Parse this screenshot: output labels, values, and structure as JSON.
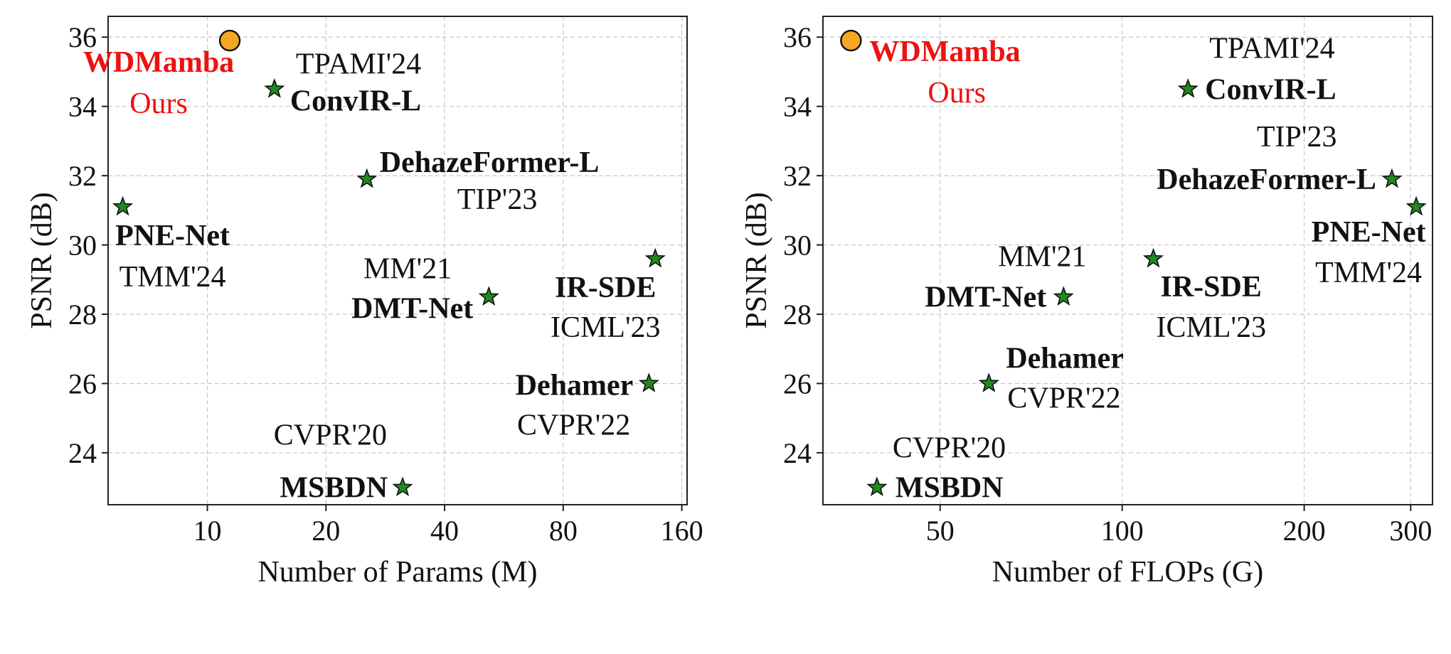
{
  "chart_data": [
    {
      "type": "scatter",
      "xscale": "log",
      "xlabel": "Number of Params (M)",
      "ylabel": "PSNR (dB)",
      "xlim": [
        5.6,
        165
      ],
      "ylim": [
        22.5,
        36.6
      ],
      "xticks": [
        10,
        20,
        40,
        80,
        160
      ],
      "xtick_labels": [
        "10",
        "20",
        "40",
        "80",
        "160"
      ],
      "yticks": [
        24,
        26,
        28,
        30,
        32,
        34,
        36
      ],
      "ytick_labels": [
        "24",
        "26",
        "28",
        "30",
        "32",
        "34",
        "36"
      ],
      "grid": true,
      "points": [
        {
          "name": "WDMamba",
          "venue": "Ours",
          "x": 11.4,
          "y": 35.9,
          "marker": "circle",
          "ours": true
        },
        {
          "name": "ConvIR-L",
          "venue": "TPAMI'24",
          "x": 14.8,
          "y": 34.5,
          "marker": "star"
        },
        {
          "name": "DehazeFormer-L",
          "venue": "TIP'23",
          "x": 25.4,
          "y": 31.9,
          "marker": "star"
        },
        {
          "name": "PNE-Net",
          "venue": "TMM'24",
          "x": 6.1,
          "y": 31.1,
          "marker": "star"
        },
        {
          "name": "DMT-Net",
          "venue": "MM'21",
          "x": 51.8,
          "y": 28.5,
          "marker": "star"
        },
        {
          "name": "IR-SDE",
          "venue": "ICML'23",
          "x": 137,
          "y": 29.6,
          "marker": "star"
        },
        {
          "name": "Dehamer",
          "venue": "CVPR'22",
          "x": 132,
          "y": 26.0,
          "marker": "star"
        },
        {
          "name": "MSBDN",
          "venue": "CVPR'20",
          "x": 31.3,
          "y": 23.0,
          "marker": "star"
        }
      ]
    },
    {
      "type": "scatter",
      "xscale": "log",
      "xlabel": "Number of FLOPs (G)",
      "ylabel": "PSNR (dB)",
      "xlim": [
        32,
        326
      ],
      "ylim": [
        22.5,
        36.6
      ],
      "xticks": [
        50,
        100,
        200,
        300
      ],
      "xtick_labels": [
        "50",
        "100",
        "200",
        "300"
      ],
      "yticks": [
        24,
        26,
        28,
        30,
        32,
        34,
        36
      ],
      "ytick_labels": [
        "24",
        "26",
        "28",
        "30",
        "32",
        "34",
        "36"
      ],
      "grid": true,
      "points": [
        {
          "name": "WDMamba",
          "venue": "Ours",
          "x": 35.6,
          "y": 35.9,
          "marker": "circle",
          "ours": true
        },
        {
          "name": "ConvIR-L",
          "venue": "TPAMI'24",
          "x": 128.5,
          "y": 34.5,
          "marker": "star"
        },
        {
          "name": "DehazeFormer-L",
          "venue": "TIP'23",
          "x": 279.3,
          "y": 31.9,
          "marker": "star"
        },
        {
          "name": "PNE-Net",
          "venue": "TMM'24",
          "x": 306.4,
          "y": 31.1,
          "marker": "star"
        },
        {
          "name": "DMT-Net",
          "venue": "MM'21",
          "x": 80.0,
          "y": 28.5,
          "marker": "star"
        },
        {
          "name": "IR-SDE",
          "venue": "ICML'23",
          "x": 112.6,
          "y": 29.6,
          "marker": "star"
        },
        {
          "name": "Dehamer",
          "venue": "CVPR'22",
          "x": 60.2,
          "y": 26.0,
          "marker": "star"
        },
        {
          "name": "MSBDN",
          "venue": "CVPR'20",
          "x": 39.3,
          "y": 23.0,
          "marker": "star"
        }
      ]
    }
  ],
  "colors": {
    "ours_marker": "#f5a623",
    "ours_text": "#ee1111",
    "star_marker": "#1f8a1f"
  }
}
